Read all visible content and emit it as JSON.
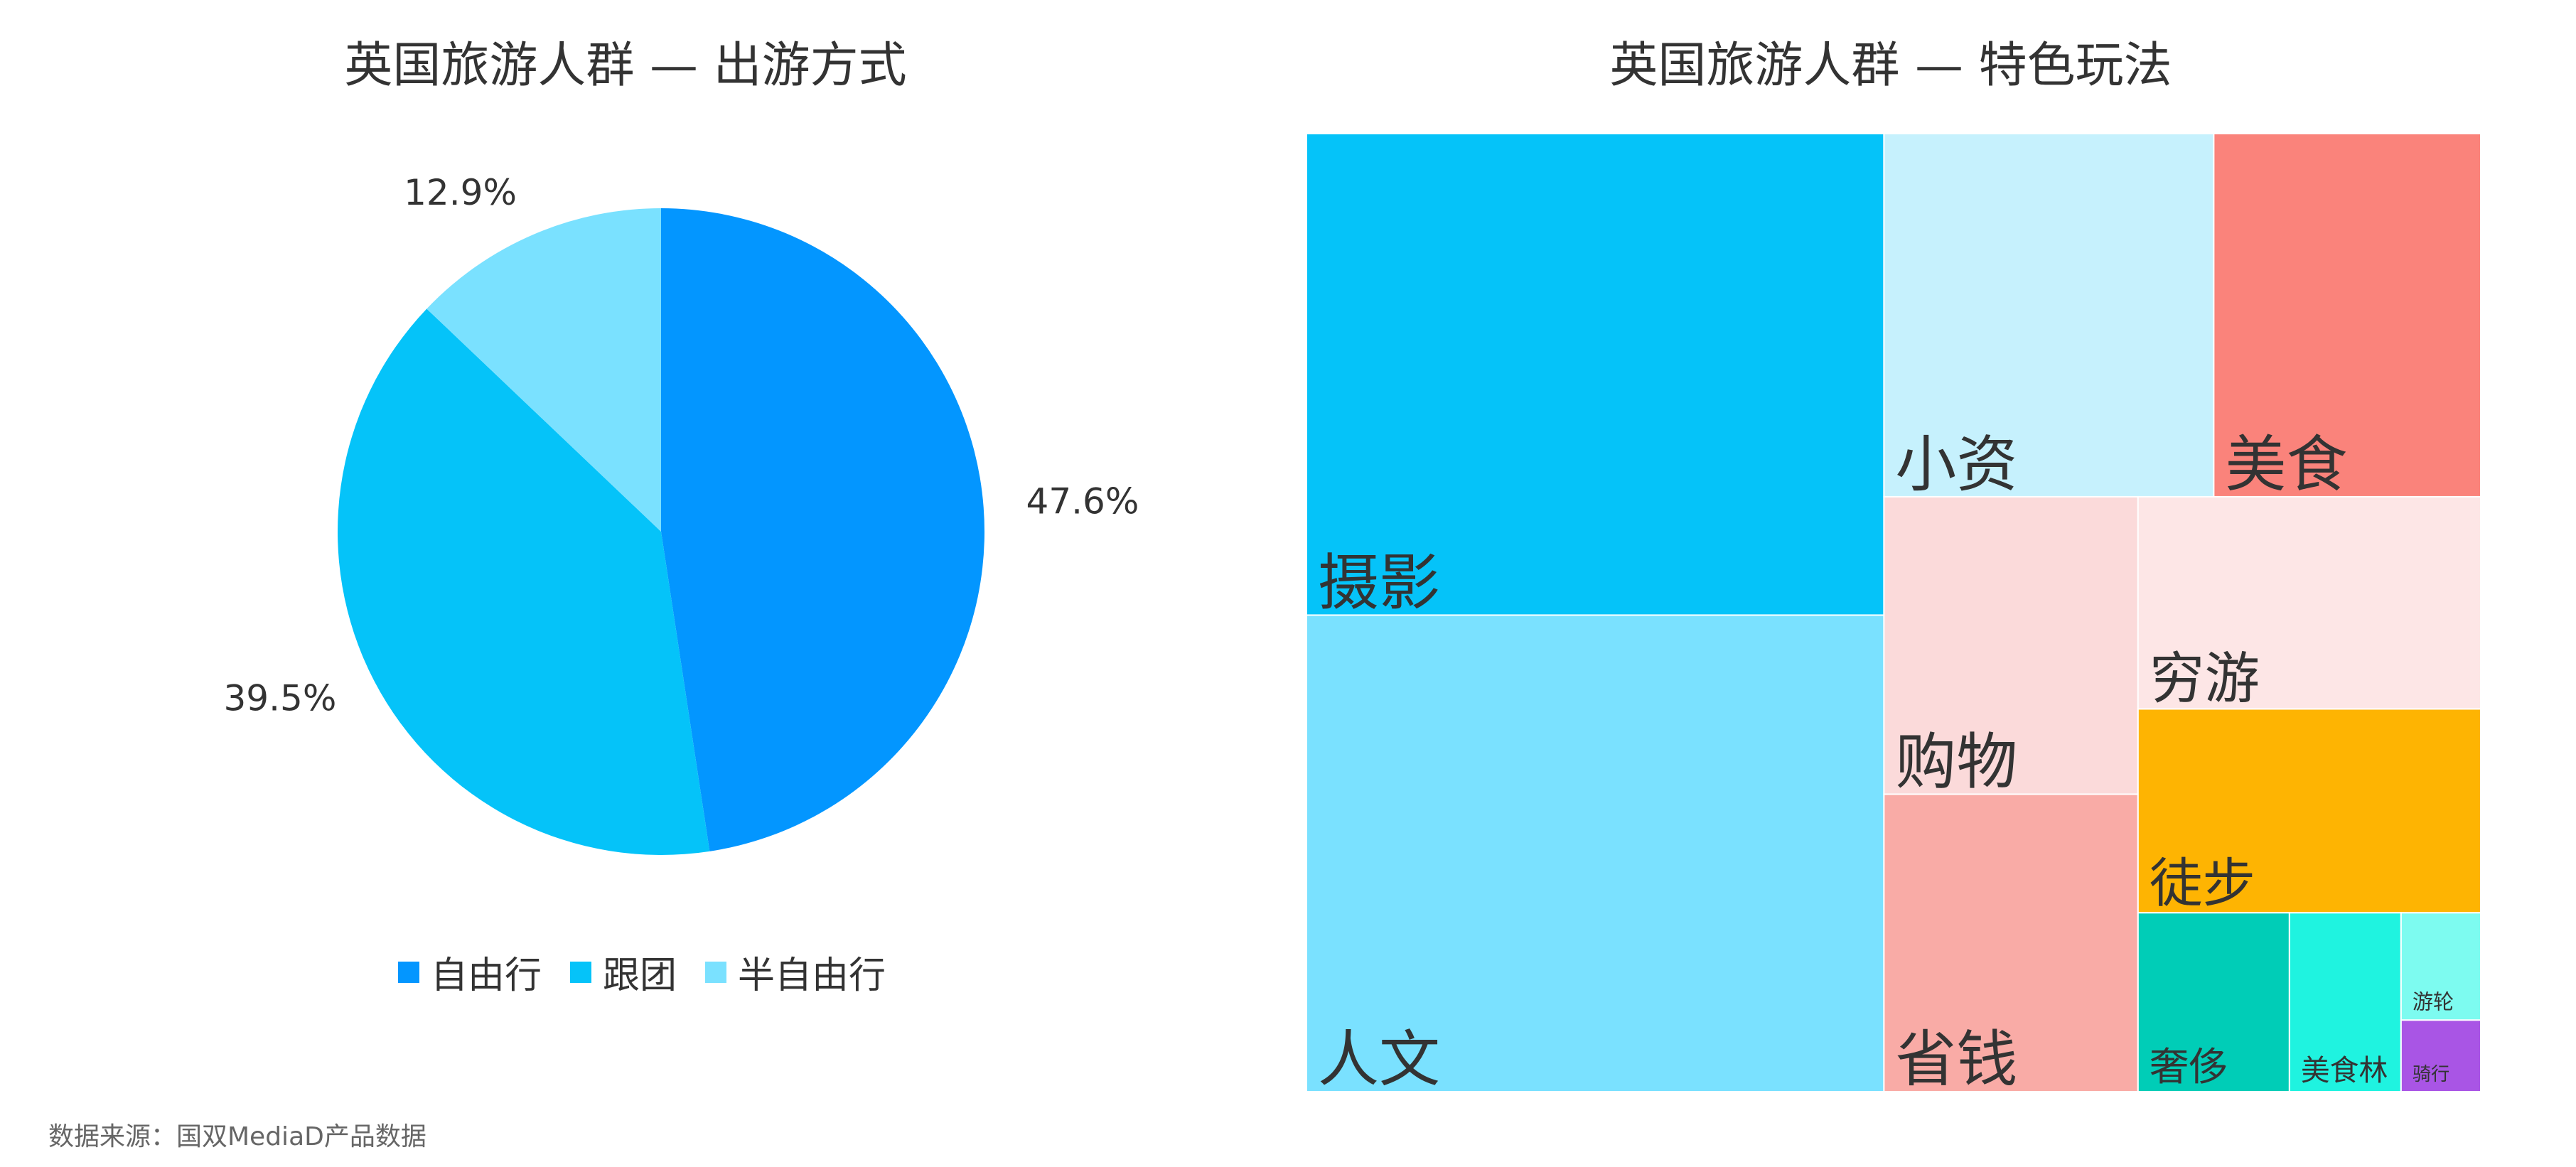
{
  "chart_data": [
    {
      "type": "pie",
      "title": "英国旅游人群 — 出游方式",
      "legend_position": "bottom",
      "slices": [
        {
          "name": "自由行",
          "value": 47.6,
          "label": "47.6%",
          "color": "#0396ff"
        },
        {
          "name": "跟团",
          "value": 39.5,
          "label": "39.5%",
          "color": "#05c3f9"
        },
        {
          "name": "半自由行",
          "value": 12.9,
          "label": "12.9%",
          "color": "#7ae1ff"
        }
      ]
    },
    {
      "type": "treemap",
      "title": "英国旅游人群 — 特色玩法",
      "items": [
        {
          "name": "摄影",
          "value": 19.5,
          "color": "#05c3f9"
        },
        {
          "name": "人文",
          "value": 19.3,
          "color": "#7ae1ff"
        },
        {
          "name": "小资",
          "value": 8.4,
          "color": "#c6f1fd"
        },
        {
          "name": "美食",
          "value": 6.8,
          "color": "#fa837b"
        },
        {
          "name": "购物",
          "value": 5.3,
          "color": "#fbdada"
        },
        {
          "name": "省钱",
          "value": 5.3,
          "color": "#f9aba6"
        },
        {
          "name": "穷游",
          "value": 5.1,
          "color": "#fde6e6"
        },
        {
          "name": "徒步",
          "value": 4.9,
          "color": "#feb402"
        },
        {
          "name": "奢侈",
          "value": 1.9,
          "color": "#00cdb7"
        },
        {
          "name": "美食林",
          "value": 1.4,
          "color": "#1ff3e0"
        },
        {
          "name": "游轮",
          "value": 0.6,
          "color": "#7dfbf0"
        },
        {
          "name": "骑行",
          "value": 0.4,
          "color": "#a955e5"
        }
      ]
    }
  ],
  "source": "数据来源：国双MediaD产品数据"
}
